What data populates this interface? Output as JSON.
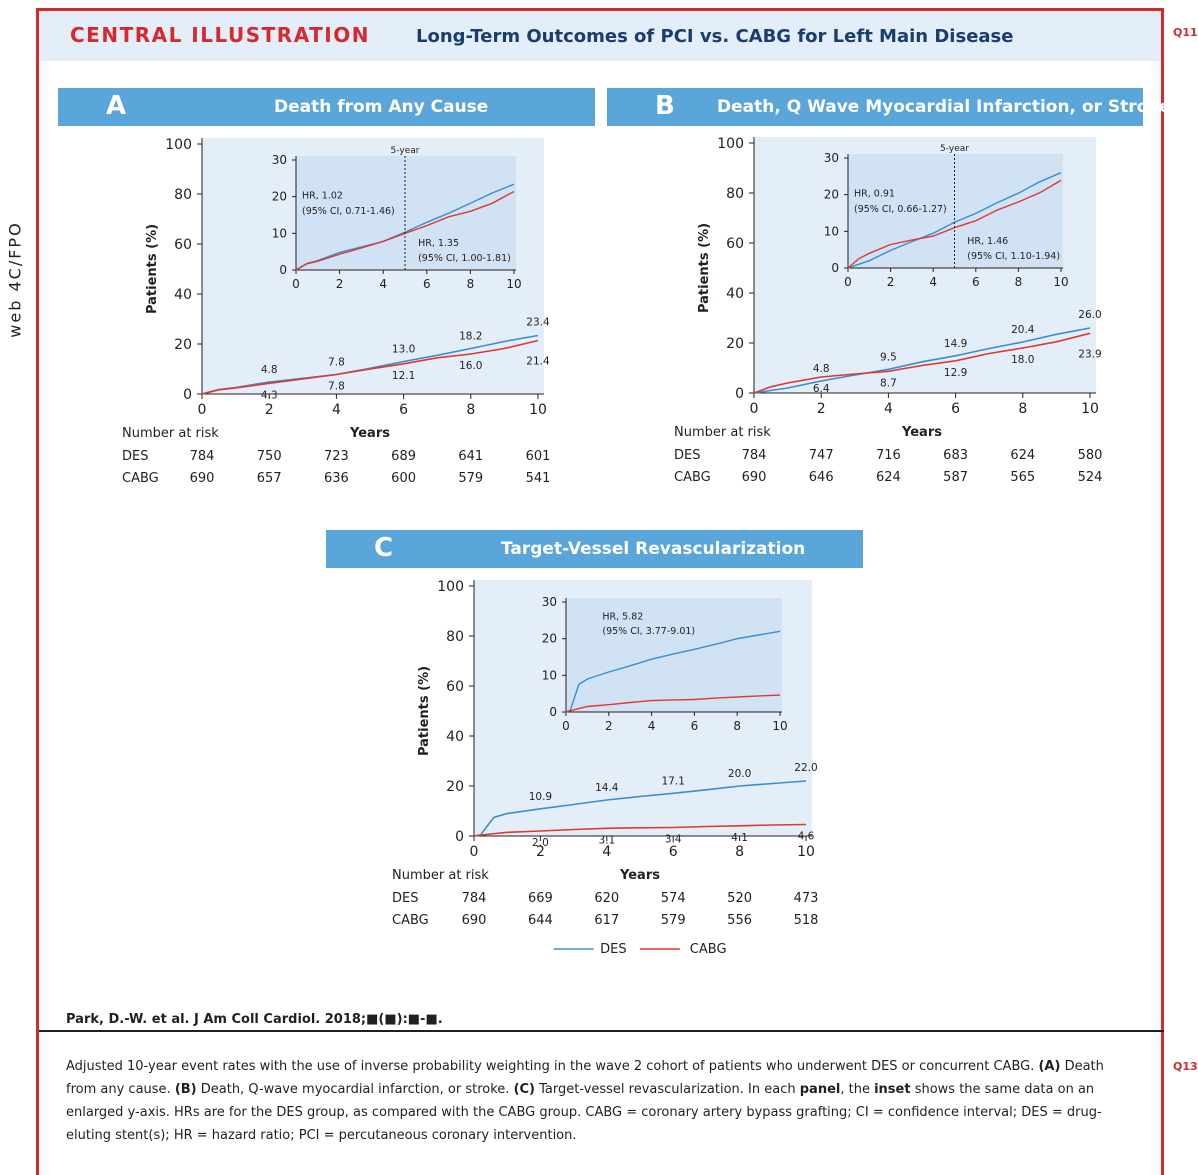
{
  "header": {
    "label": "CENTRAL ILLUSTRATION",
    "title": "Long-Term Outcomes of PCI vs. CABG for Left Main Disease",
    "q11": "Q11",
    "q13": "Q13",
    "side_label": "web 4C/FPO"
  },
  "colors": {
    "des": "#3a8ed0",
    "cabg": "#e0382f",
    "panel_bg": "#e4eef8",
    "inset_bg": "#d0e2f3",
    "header": "#5aa5d9",
    "accent": "#d7282f"
  },
  "chart_data": [
    {
      "type": "line",
      "panel": "A",
      "title": "Death from Any Cause",
      "xlabel": "Years",
      "ylabel": "Patients (%)",
      "xlim": [
        0,
        10
      ],
      "ylim": [
        0,
        100
      ],
      "xticks": [
        0,
        2,
        4,
        6,
        8,
        10
      ],
      "yticks": [
        0,
        20,
        40,
        60,
        80,
        100
      ],
      "series": [
        {
          "name": "DES",
          "x": [
            0,
            0.5,
            1,
            2,
            3,
            4,
            5,
            6,
            7,
            8,
            9,
            10
          ],
          "y": [
            0,
            1.8,
            2.6,
            4.8,
            6.3,
            7.8,
            10.3,
            13.0,
            15.5,
            18.2,
            21.0,
            23.4
          ]
        },
        {
          "name": "CABG",
          "x": [
            0,
            0.5,
            1,
            2,
            3,
            4,
            5,
            6,
            7,
            8,
            9,
            10
          ],
          "y": [
            0,
            1.7,
            2.4,
            4.3,
            6.0,
            7.8,
            10.0,
            12.1,
            14.5,
            16.0,
            18.2,
            21.4
          ]
        }
      ],
      "data_labels": {
        "des": [
          [
            "4.8",
            2
          ],
          [
            "7.8",
            4
          ],
          [
            "13.0",
            6
          ],
          [
            "18.2",
            8
          ],
          [
            "23.4",
            10
          ]
        ],
        "cabg": [
          [
            "4.3",
            2
          ],
          [
            "7.8",
            4
          ],
          [
            "12.1",
            6
          ],
          [
            "16.0",
            8
          ],
          [
            "21.4",
            10
          ]
        ]
      },
      "inset": {
        "ylim": [
          0,
          30
        ],
        "yticks": [
          0,
          10,
          20,
          30
        ],
        "xticks": [
          0,
          2,
          4,
          6,
          8,
          10
        ],
        "marker_label": "5-year",
        "hr1_line1": "HR, 1.02",
        "hr1_line2": "(95% CI, 0.71-1.46)",
        "hr2_line1": "HR, 1.35",
        "hr2_line2": "(95% CI, 1.00-1.81)"
      },
      "risk": {
        "header": "Number at risk",
        "rows": [
          {
            "label": "DES",
            "values": [
              "784",
              "750",
              "723",
              "689",
              "641",
              "601"
            ]
          },
          {
            "label": "CABG",
            "values": [
              "690",
              "657",
              "636",
              "600",
              "579",
              "541"
            ]
          }
        ]
      }
    },
    {
      "type": "line",
      "panel": "B",
      "title": "Death, Q Wave Myocardial Infarction, or Stroke",
      "xlabel": "Years",
      "ylabel": "Patients (%)",
      "xlim": [
        0,
        10
      ],
      "ylim": [
        0,
        100
      ],
      "xticks": [
        0,
        2,
        4,
        6,
        8,
        10
      ],
      "yticks": [
        0,
        20,
        40,
        60,
        80,
        100
      ],
      "series": [
        {
          "name": "DES",
          "x": [
            0,
            0.5,
            1,
            2,
            3,
            4,
            5,
            6,
            7,
            8,
            9,
            10
          ],
          "y": [
            0,
            1.0,
            2.0,
            4.8,
            7.2,
            9.5,
            12.5,
            14.9,
            17.8,
            20.4,
            23.5,
            26.0
          ]
        },
        {
          "name": "CABG",
          "x": [
            0,
            0.5,
            1,
            2,
            3,
            4,
            5,
            6,
            7,
            8,
            9,
            10
          ],
          "y": [
            0,
            2.5,
            4.0,
            6.4,
            7.6,
            8.7,
            11.0,
            12.9,
            15.8,
            18.0,
            20.5,
            23.9
          ]
        }
      ],
      "data_labels": {
        "des": [
          [
            "4.8",
            2
          ],
          [
            "9.5",
            4
          ],
          [
            "14.9",
            6
          ],
          [
            "20.4",
            8
          ],
          [
            "26.0",
            10
          ]
        ],
        "cabg": [
          [
            "6.4",
            2
          ],
          [
            "8.7",
            4
          ],
          [
            "12.9",
            6
          ],
          [
            "18.0",
            8
          ],
          [
            "23.9",
            10
          ]
        ]
      },
      "inset": {
        "ylim": [
          0,
          30
        ],
        "yticks": [
          0,
          10,
          20,
          30
        ],
        "xticks": [
          0,
          2,
          4,
          6,
          8,
          10
        ],
        "marker_label": "5-year",
        "hr1_line1": "HR, 0.91",
        "hr1_line2": "(95% CI, 0.66-1.27)",
        "hr2_line1": "HR, 1.46",
        "hr2_line2": "(95% CI, 1.10-1.94)"
      },
      "risk": {
        "header": "Number at risk",
        "rows": [
          {
            "label": "DES",
            "values": [
              "784",
              "747",
              "716",
              "683",
              "624",
              "580"
            ]
          },
          {
            "label": "CABG",
            "values": [
              "690",
              "646",
              "624",
              "587",
              "565",
              "524"
            ]
          }
        ]
      }
    },
    {
      "type": "line",
      "panel": "C",
      "title": "Target-Vessel Revascularization",
      "xlabel": "Years",
      "ylabel": "Patients (%)",
      "xlim": [
        0,
        10
      ],
      "ylim": [
        0,
        100
      ],
      "xticks": [
        0,
        2,
        4,
        6,
        8,
        10
      ],
      "yticks": [
        0,
        20,
        40,
        60,
        80,
        100
      ],
      "series": [
        {
          "name": "DES",
          "x": [
            0,
            0.2,
            0.4,
            0.6,
            1,
            2,
            3,
            4,
            5,
            6,
            7,
            8,
            9,
            10
          ],
          "y": [
            0,
            0.5,
            4.0,
            7.5,
            9.0,
            10.9,
            12.6,
            14.4,
            15.8,
            17.1,
            18.5,
            20.0,
            21.0,
            22.0
          ]
        },
        {
          "name": "CABG",
          "x": [
            0,
            0.5,
            1,
            2,
            3,
            4,
            5,
            6,
            7,
            8,
            9,
            10
          ],
          "y": [
            0,
            0.8,
            1.5,
            2.0,
            2.6,
            3.1,
            3.3,
            3.4,
            3.8,
            4.1,
            4.4,
            4.6
          ]
        }
      ],
      "data_labels": {
        "des": [
          [
            "10.9",
            2
          ],
          [
            "14.4",
            4
          ],
          [
            "17.1",
            6
          ],
          [
            "20.0",
            8
          ],
          [
            "22.0",
            10
          ]
        ],
        "cabg": [
          [
            "2.0",
            2
          ],
          [
            "3.1",
            4
          ],
          [
            "3.4",
            6
          ],
          [
            "4.1",
            8
          ],
          [
            "4.6",
            10
          ]
        ]
      },
      "inset": {
        "ylim": [
          0,
          30
        ],
        "yticks": [
          0,
          10,
          20,
          30
        ],
        "xticks": [
          0,
          2,
          4,
          6,
          8,
          10
        ],
        "hr1_line1": "HR, 5.82",
        "hr1_line2": "(95% CI, 3.77-9.01)"
      },
      "risk": {
        "header": "Number at risk",
        "rows": [
          {
            "label": "DES",
            "values": [
              "784",
              "669",
              "620",
              "574",
              "520",
              "473"
            ]
          },
          {
            "label": "CABG",
            "values": [
              "690",
              "644",
              "617",
              "579",
              "556",
              "518"
            ]
          }
        ]
      }
    }
  ],
  "legend": {
    "des": "DES",
    "cabg": "CABG"
  },
  "citation": "Park, D.-W. et al. J Am Coll Cardiol. 2018;■(■):■-■.",
  "caption": {
    "t1": "Adjusted 10-year event rates with the use of inverse probability weighting in the wave 2 cohort of patients who underwent DES or concurrent CABG. ",
    "a": "(A)",
    "t2": " Death from any cause. ",
    "b": "(B)",
    "t3": " Death, Q-wave myocardial infarction, or stroke. ",
    "c": "(C)",
    "t4": " Target-vessel revascularization. In each ",
    "panel": "panel",
    "t5": ", the ",
    "inset": "inset",
    "t6": " shows the same data on an enlarged y-axis. HRs are for the DES group, as compared with the CABG group. CABG = coronary artery bypass grafting; CI = confidence interval; DES = drug-eluting stent(s); HR = hazard ratio; PCI = percutaneous coronary intervention."
  }
}
